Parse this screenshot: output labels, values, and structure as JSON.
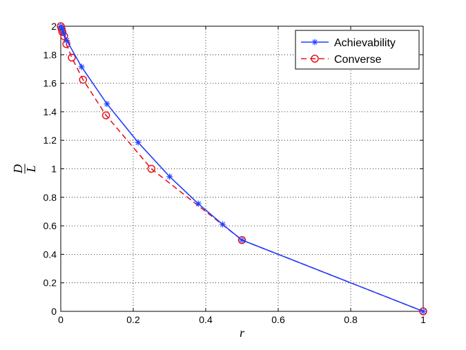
{
  "chart_data": {
    "type": "line",
    "title": "",
    "xlabel": "r",
    "ylabel": {
      "numerator": "D",
      "denominator": "L"
    },
    "xlim": [
      0,
      1
    ],
    "ylim": [
      0,
      2
    ],
    "xticks": [
      "0",
      "0.2",
      "0.4",
      "0.6",
      "0.8",
      "1"
    ],
    "yticks": [
      "0",
      "0.2",
      "0.4",
      "0.6",
      "0.8",
      "1",
      "1.2",
      "1.4",
      "1.6",
      "1.8",
      "2"
    ],
    "grid": true,
    "legend_position": "top-right",
    "series": [
      {
        "name": "Achievability",
        "color": "#1f3fff",
        "line_style": "solid",
        "marker": "asterisk",
        "x": [
          0,
          0.0035,
          0.0085,
          0.0165,
          0.0575,
          0.1275,
          0.2135,
          0.3005,
          0.3795,
          0.4465,
          0.5,
          1.0
        ],
        "y": [
          2.0,
          1.985,
          1.95,
          1.9,
          1.715,
          1.455,
          1.185,
          0.945,
          0.755,
          0.61,
          0.5,
          0.0
        ]
      },
      {
        "name": "Converse",
        "color": "#e8141c",
        "line_style": "dashed",
        "marker": "circle",
        "x": [
          0,
          0.0025,
          0.0045,
          0.0095,
          0.0155,
          0.0305,
          0.0615,
          0.125,
          0.25,
          0.5,
          1.0
        ],
        "y": [
          2.0,
          1.98,
          1.96,
          1.93,
          1.875,
          1.78,
          1.625,
          1.375,
          1.0,
          0.5,
          0.0
        ]
      }
    ]
  }
}
